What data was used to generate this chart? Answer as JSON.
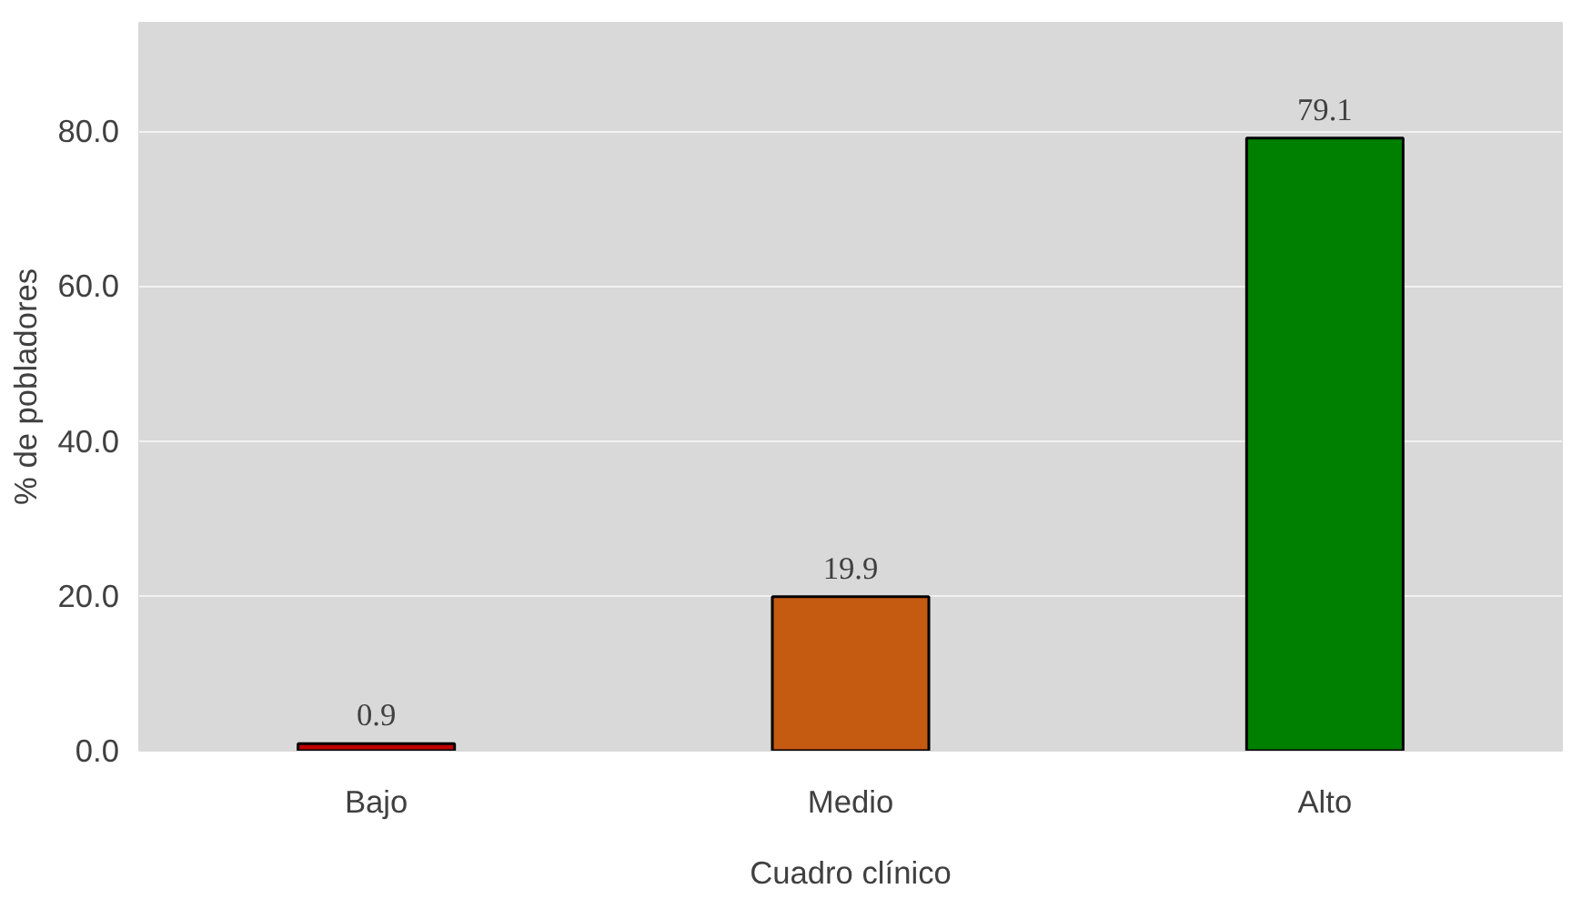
{
  "chart_data": {
    "type": "bar",
    "xlabel": "Cuadro clínico",
    "ylabel": "% de pobladores",
    "categories": [
      "Bajo",
      "Medio",
      "Alto"
    ],
    "values": [
      0.9,
      19.9,
      79.1
    ],
    "colors": [
      "#c00000",
      "#c55a11",
      "#008000"
    ],
    "ylim": [
      0,
      94
    ],
    "yticks": [
      {
        "value": 0,
        "label": "0.0"
      },
      {
        "value": 20,
        "label": "20.0"
      },
      {
        "value": 40,
        "label": "40.0"
      },
      {
        "value": 60,
        "label": "60.0"
      },
      {
        "value": 80,
        "label": "80.0"
      }
    ],
    "grid": "y",
    "data_labels": true
  }
}
